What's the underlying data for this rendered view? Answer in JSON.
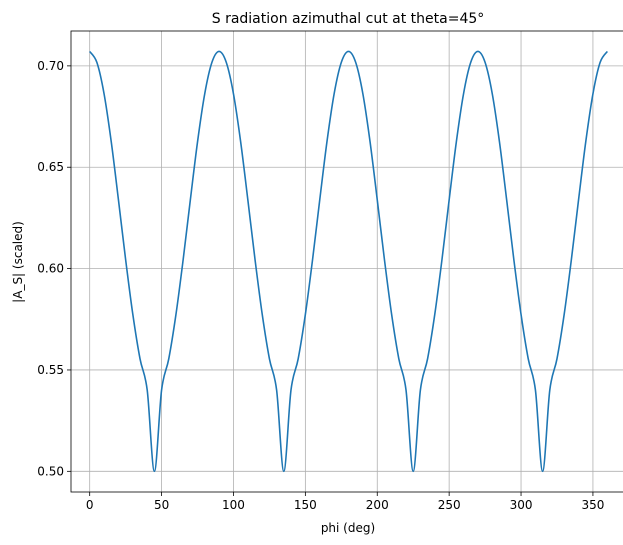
{
  "chart_data": {
    "type": "line",
    "title": "S radiation azimuthal cut at theta=45°",
    "xlabel": "phi (deg)",
    "ylabel": "|A_S| (scaled)",
    "xlim": [
      -13,
      373
    ],
    "ylim": [
      0.4898,
      0.7172
    ],
    "x_ticks": [
      0,
      50,
      100,
      150,
      200,
      250,
      300,
      350
    ],
    "y_ticks": [
      0.5,
      0.55,
      0.6,
      0.65,
      0.7
    ],
    "x_tick_labels": [
      "0",
      "50",
      "100",
      "150",
      "200",
      "250",
      "300",
      "350"
    ],
    "y_tick_labels": [
      "0.50",
      "0.55",
      "0.60",
      "0.65",
      "0.70"
    ],
    "grid": true,
    "line_color": "#1f77b4",
    "series": [
      {
        "x": [
          0,
          5,
          10,
          15,
          20,
          25,
          30,
          35,
          40,
          45,
          50,
          55,
          60,
          65,
          70,
          75,
          80,
          85,
          90,
          95,
          100,
          105,
          110,
          115,
          120,
          125,
          130,
          135,
          140,
          145,
          150,
          155,
          160,
          165,
          170,
          175,
          180,
          185,
          190,
          195,
          200,
          205,
          210,
          215,
          220,
          225,
          230,
          235,
          240,
          245,
          250,
          255,
          260,
          265,
          270,
          275,
          280,
          285,
          290,
          295,
          300,
          305,
          310,
          315,
          320,
          325,
          330,
          335,
          340,
          345,
          350,
          355,
          360
        ],
        "y": [
          0.7071,
          0.7017,
          0.6862,
          0.6625,
          0.6339,
          0.6044,
          0.5774,
          0.5555,
          0.5401,
          0.5,
          0.5401,
          0.5555,
          0.5774,
          0.6044,
          0.6339,
          0.6625,
          0.6862,
          0.7017,
          0.7071,
          0.7017,
          0.6862,
          0.6625,
          0.6339,
          0.6044,
          0.5774,
          0.5555,
          0.5401,
          0.5,
          0.5401,
          0.5555,
          0.5774,
          0.6044,
          0.6339,
          0.6625,
          0.6862,
          0.7017,
          0.7071,
          0.7017,
          0.6862,
          0.6625,
          0.6339,
          0.6044,
          0.5774,
          0.5555,
          0.5401,
          0.5,
          0.5401,
          0.5555,
          0.5774,
          0.6044,
          0.6339,
          0.6625,
          0.6862,
          0.7017,
          0.7071,
          0.7017,
          0.6862,
          0.6625,
          0.6339,
          0.6044,
          0.5774,
          0.5555,
          0.5401,
          0.5,
          0.5401,
          0.5555,
          0.5774,
          0.6044,
          0.6339,
          0.6625,
          0.6862,
          0.7017,
          0.7071
        ]
      }
    ]
  }
}
